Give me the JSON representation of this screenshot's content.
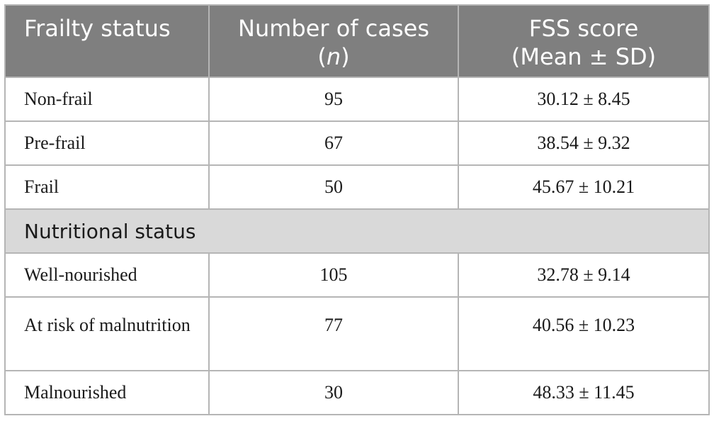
{
  "header": {
    "col1": "Frailty status",
    "col2_line1": "Number of cases",
    "col2_line2_open": "(",
    "col2_line2_italic": "n",
    "col2_line2_close": ")",
    "col3_line1": "FSS score",
    "col3_line2": "(Mean ± SD)"
  },
  "frailty_rows": [
    {
      "label": "Non-frail",
      "n": "95",
      "score": "30.12 ± 8.45"
    },
    {
      "label": "Pre-frail",
      "n": "67",
      "score": "38.54 ± 9.32"
    },
    {
      "label": "Frail",
      "n": "50",
      "score": "45.67 ± 10.21"
    }
  ],
  "section": {
    "label": "Nutritional status"
  },
  "nutrition_rows": [
    {
      "label": "Well-nourished",
      "n": "105",
      "score": "32.78 ± 9.14"
    },
    {
      "label": "At risk of malnutrition",
      "n": "77",
      "score": "40.56 ± 10.23"
    },
    {
      "label": "Malnourished",
      "n": "30",
      "score": "48.33 ± 11.45"
    }
  ],
  "colors": {
    "header_bg": "#7f7f7f",
    "section_bg": "#d9d9d9",
    "border": "#b5b5b5"
  }
}
